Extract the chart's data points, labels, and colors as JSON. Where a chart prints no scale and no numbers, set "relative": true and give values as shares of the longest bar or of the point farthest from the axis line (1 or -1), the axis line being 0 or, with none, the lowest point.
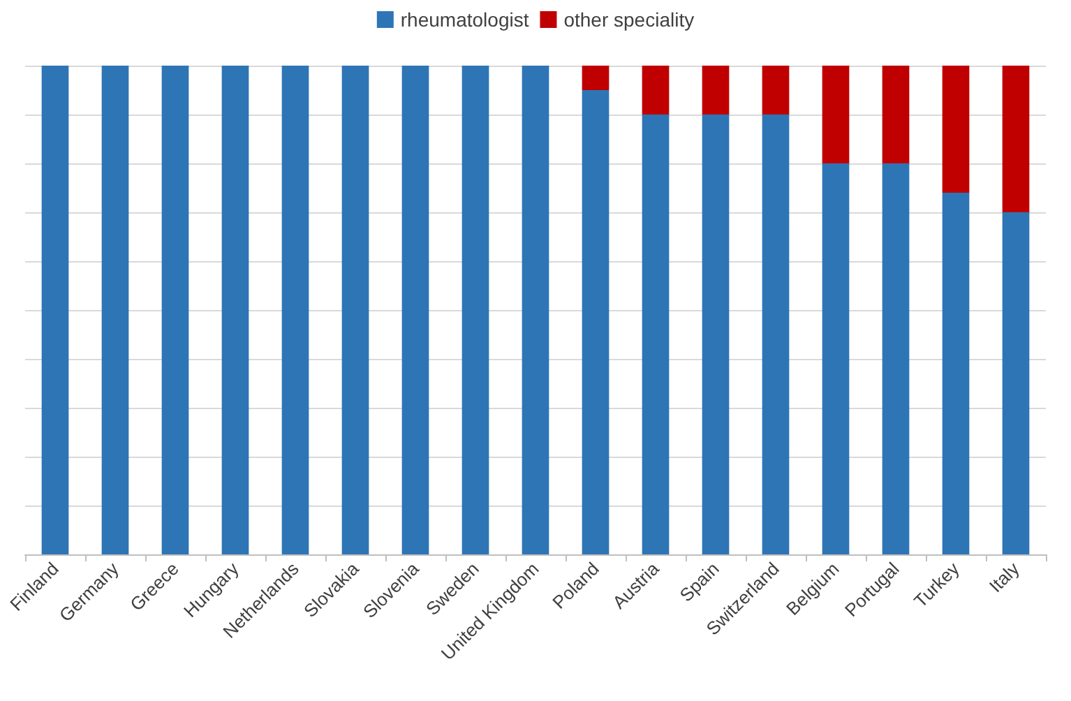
{
  "chart_data": {
    "type": "bar",
    "stacked": true,
    "relative": true,
    "grid": "y",
    "legend": "top",
    "categories": [
      "Finland",
      "Germany",
      "Greece",
      "Hungary",
      "Netherlands",
      "Slovakia",
      "Slovenia",
      "Sweden",
      "United Kingdom",
      "Poland",
      "Austria",
      "Spain",
      "Switzerland",
      "Belgium",
      "Portugal",
      "Turkey",
      "Italy"
    ],
    "series": [
      {
        "name": "rheumatologist",
        "color": "#2e75b6",
        "values": [
          1,
          1,
          1,
          1,
          1,
          1,
          1,
          1,
          1,
          0.95,
          0.9,
          0.9,
          0.9,
          0.8,
          0.8,
          0.74,
          0.7
        ]
      },
      {
        "name": "other speciality",
        "color": "#c00000",
        "values": [
          0,
          0,
          0,
          0,
          0,
          0,
          0,
          0,
          0,
          0.05,
          0.1,
          0.1,
          0.1,
          0.2,
          0.2,
          0.26,
          0.3
        ]
      }
    ]
  }
}
